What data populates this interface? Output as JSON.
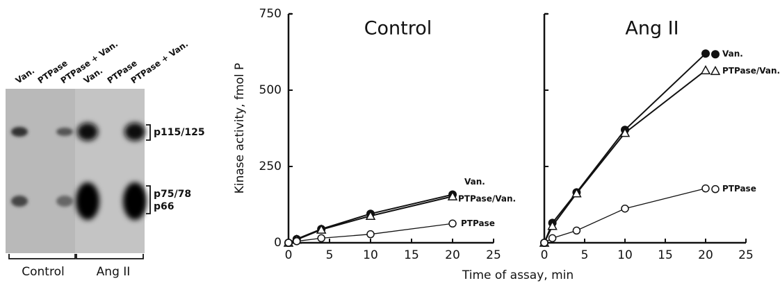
{
  "blot": {
    "lanes": [
      "Van.",
      "PTPase",
      "PTPase + Van.",
      "Van.",
      "PTPase",
      "PTPase + Van."
    ],
    "bands": [
      "p115/125",
      "p75/78",
      "p66"
    ],
    "groups": [
      "Control",
      "Ang II"
    ]
  },
  "chart_data": [
    {
      "type": "line",
      "title": "Control",
      "xlabel": "Time of assay, min",
      "ylabel": "Kinase activity, fmol P",
      "x": [
        0,
        1,
        4,
        10,
        20
      ],
      "xlim": [
        0,
        25
      ],
      "xticks": [
        0,
        5,
        10,
        15,
        20,
        25
      ],
      "ylim": [
        0,
        750
      ],
      "yticks": [
        0,
        250,
        500,
        750
      ],
      "ytick_labels": true,
      "series": [
        {
          "name": "Van.",
          "marker": "filled-circle",
          "color": "#111111",
          "values": [
            0,
            12,
            45,
            95,
            158
          ]
        },
        {
          "name": "PTPase/Van.",
          "marker": "open-triangle",
          "color": "#111111",
          "values": [
            0,
            10,
            43,
            88,
            152
          ]
        },
        {
          "name": "PTPase",
          "marker": "open-circle",
          "color": "#111111",
          "values": [
            0,
            5,
            15,
            28,
            63
          ]
        }
      ]
    },
    {
      "type": "line",
      "title": "Ang II",
      "x": [
        0,
        1,
        4,
        10,
        20
      ],
      "xlim": [
        0,
        25
      ],
      "xticks": [
        0,
        5,
        10,
        15,
        20,
        25
      ],
      "ylim": [
        0,
        750
      ],
      "yticks": [
        0,
        250,
        500,
        750
      ],
      "ytick_labels": false,
      "series": [
        {
          "name": "Van.",
          "marker": "filled-circle",
          "color": "#111111",
          "values": [
            0,
            65,
            165,
            370,
            620
          ]
        },
        {
          "name": "PTPase/Van.",
          "marker": "open-triangle",
          "color": "#111111",
          "values": [
            0,
            55,
            162,
            360,
            565
          ]
        },
        {
          "name": "PTPase",
          "marker": "open-circle",
          "color": "#111111",
          "values": [
            0,
            15,
            40,
            112,
            178
          ]
        }
      ]
    }
  ]
}
